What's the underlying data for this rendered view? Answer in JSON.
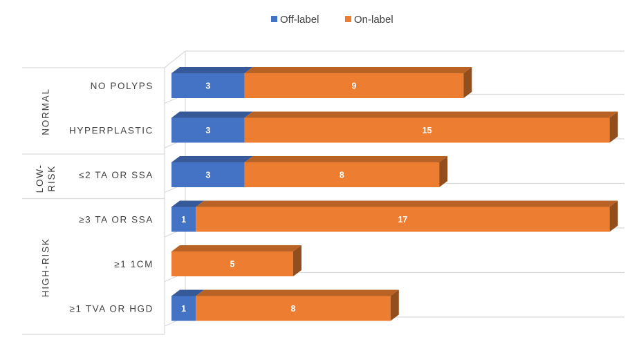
{
  "chart_data": {
    "type": "bar",
    "orientation": "horizontal",
    "stacked": true,
    "three_d": true,
    "legend_position": "top",
    "grid": true,
    "xlim": [
      0,
      18
    ],
    "colors": {
      "off_label": "#4472c4",
      "on_label": "#ed7d31"
    },
    "series": [
      {
        "name": "Off-label",
        "color": "#4472c4",
        "values": [
          3,
          3,
          3,
          1,
          0,
          1
        ]
      },
      {
        "name": "On-label",
        "color": "#ed7d31",
        "values": [
          9,
          15,
          8,
          17,
          5,
          8
        ]
      }
    ],
    "categories": [
      "NO POLYPS",
      "HYPERPLASTIC",
      "≤2 TA OR SSA",
      "≥3 TA OR SSA",
      "≥1 1CM",
      "≥1 TVA OR HGD"
    ],
    "groups": [
      {
        "label": "NORMAL",
        "lines": [
          "NORMAL"
        ],
        "start": 0,
        "end": 1
      },
      {
        "label": "LOW-RISK",
        "lines": [
          "LOW-",
          "RISK"
        ],
        "start": 2,
        "end": 2
      },
      {
        "label": "HIGH-RISK",
        "lines": [
          "HIGH-RISK"
        ],
        "start": 3,
        "end": 5
      }
    ]
  }
}
